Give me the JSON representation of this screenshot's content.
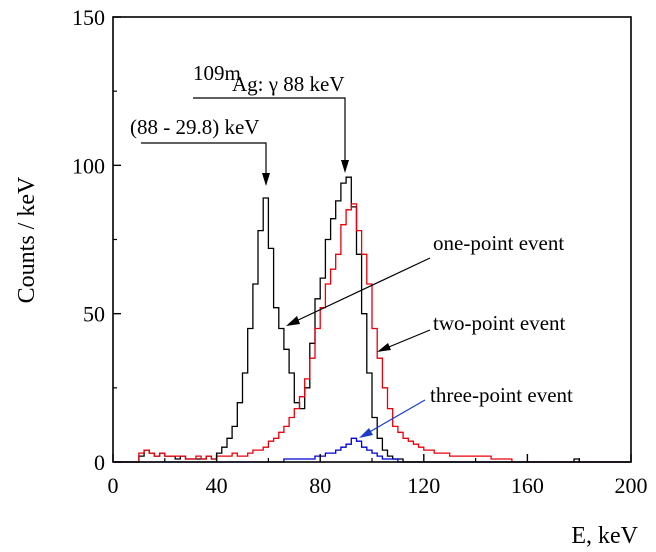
{
  "chart_data": {
    "type": "line",
    "xlabel": "E, keV",
    "ylabel": "Counts / keV",
    "xlim": [
      0,
      200
    ],
    "ylim": [
      0,
      150
    ],
    "xticks": [
      0,
      40,
      80,
      120,
      160,
      200
    ],
    "yticks": [
      0,
      50,
      100,
      150
    ],
    "grid": false,
    "series": [
      {
        "color": "#000000",
        "x": [
          0,
          2,
          4,
          6,
          8,
          10,
          12,
          14,
          16,
          18,
          20,
          22,
          24,
          26,
          28,
          30,
          32,
          34,
          36,
          38,
          40,
          42,
          44,
          46,
          48,
          50,
          52,
          54,
          56,
          58,
          60,
          62,
          64,
          66,
          68,
          70,
          72,
          74,
          76,
          78,
          80,
          82,
          84,
          86,
          88,
          90,
          92,
          94,
          96,
          98,
          100,
          102,
          104,
          106,
          108,
          110,
          112,
          114,
          116,
          118,
          120,
          130,
          140,
          150,
          160,
          170,
          178,
          180,
          190,
          200
        ],
        "values": [
          0,
          0,
          0,
          0,
          0,
          2,
          4,
          3,
          2,
          3,
          2,
          2,
          1,
          2,
          1,
          1,
          1,
          1,
          2,
          1,
          3,
          5,
          8,
          12,
          20,
          30,
          45,
          60,
          78,
          89,
          72,
          52,
          45,
          38,
          30,
          20,
          18,
          25,
          40,
          55,
          62,
          75,
          82,
          88,
          94,
          96,
          86,
          70,
          50,
          30,
          15,
          8,
          4,
          2,
          1,
          1,
          0,
          0,
          0,
          0,
          0,
          0,
          0,
          0,
          0,
          0,
          1,
          0,
          0,
          0
        ]
      },
      {
        "color": "#e8000b",
        "x": [
          0,
          2,
          4,
          6,
          8,
          10,
          12,
          14,
          16,
          18,
          20,
          22,
          24,
          26,
          28,
          30,
          32,
          34,
          36,
          38,
          40,
          42,
          44,
          46,
          48,
          50,
          52,
          54,
          56,
          58,
          60,
          62,
          64,
          66,
          68,
          70,
          72,
          74,
          76,
          78,
          80,
          82,
          84,
          86,
          88,
          90,
          92,
          94,
          96,
          98,
          100,
          102,
          104,
          106,
          108,
          110,
          112,
          114,
          116,
          118,
          120,
          122,
          124,
          126,
          128,
          130,
          134,
          138,
          142,
          146,
          150,
          154,
          160,
          170,
          180,
          190,
          200
        ],
        "values": [
          0,
          0,
          0,
          0,
          0,
          3,
          4,
          3,
          2,
          3,
          2,
          2,
          2,
          2,
          1,
          1,
          2,
          1,
          2,
          1,
          2,
          2,
          2,
          3,
          2,
          2,
          3,
          4,
          4,
          5,
          7,
          8,
          10,
          12,
          15,
          18,
          22,
          28,
          35,
          45,
          52,
          60,
          65,
          70,
          80,
          85,
          87,
          78,
          70,
          60,
          45,
          35,
          25,
          18,
          12,
          10,
          8,
          7,
          6,
          5,
          4,
          4,
          3,
          3,
          3,
          2,
          2,
          2,
          2,
          1,
          1,
          0,
          0,
          0,
          0,
          0,
          0
        ]
      },
      {
        "color": "#0000d0",
        "x": [
          0,
          10,
          20,
          30,
          40,
          50,
          60,
          66,
          70,
          74,
          76,
          78,
          80,
          82,
          84,
          86,
          88,
          90,
          92,
          94,
          96,
          98,
          100,
          102,
          104,
          106,
          110,
          120,
          200
        ],
        "values": [
          0,
          0,
          0,
          0,
          0,
          0,
          0,
          1,
          1,
          1,
          1,
          2,
          2,
          3,
          3,
          4,
          5,
          6,
          8,
          7,
          5,
          4,
          3,
          2,
          1,
          1,
          0,
          0,
          0
        ]
      }
    ],
    "annotations": [
      {
        "sup": "109m",
        "text": "Ag: γ 88 keV"
      },
      {
        "text": "(88 - 29.8) keV"
      },
      {
        "text": "one-point event"
      },
      {
        "text": "two-point event"
      },
      {
        "text": "three-point event"
      }
    ]
  }
}
